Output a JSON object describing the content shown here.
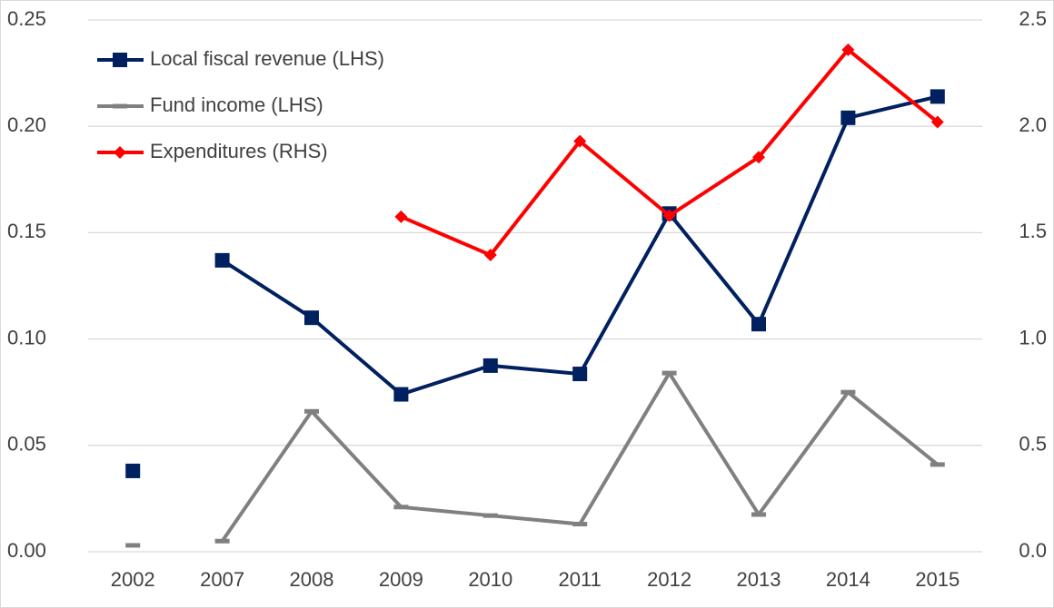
{
  "chart_data": {
    "type": "line",
    "categories": [
      "2002",
      "2007",
      "2008",
      "2009",
      "2010",
      "2011",
      "2012",
      "2013",
      "2014",
      "2015"
    ],
    "line_break_after_index": 0,
    "series": [
      {
        "name": "Local fiscal revenue (LHS)",
        "color": "#002060",
        "marker": "square",
        "axis": "y",
        "values": [
          0.038,
          0.137,
          0.11,
          0.074,
          0.0875,
          0.0836,
          0.159,
          0.107,
          0.204,
          0.214
        ]
      },
      {
        "name": "Fund income (LHS)",
        "color": "#808080",
        "marker": "dash",
        "axis": "y",
        "values": [
          0.003,
          0.005,
          0.066,
          0.021,
          0.017,
          0.013,
          0.084,
          0.0175,
          0.075,
          0.041
        ]
      },
      {
        "name": "Expenditures (RHS)",
        "color": "#ff0000",
        "marker": "diamond",
        "axis": "y2",
        "values": [
          null,
          null,
          null,
          1.575,
          1.395,
          1.93,
          1.58,
          1.855,
          2.36,
          2.02
        ]
      }
    ],
    "ylim": [
      0,
      0.25
    ],
    "yticks": [
      {
        "value": 0,
        "label": "0.00"
      },
      0.05,
      {
        "value": 0.1,
        "label": "0.10"
      },
      0.15,
      {
        "value": 0.2,
        "label": "0.20"
      },
      0.25
    ],
    "y2lim": [
      0,
      2.5
    ],
    "y2ticks": [
      {
        "value": 0,
        "label": "0.0"
      },
      0.5,
      {
        "value": 1,
        "label": "1.0"
      },
      1.5,
      {
        "value": 2,
        "label": "2.0"
      },
      2.5
    ],
    "grid": true,
    "legend": "upper-left"
  }
}
